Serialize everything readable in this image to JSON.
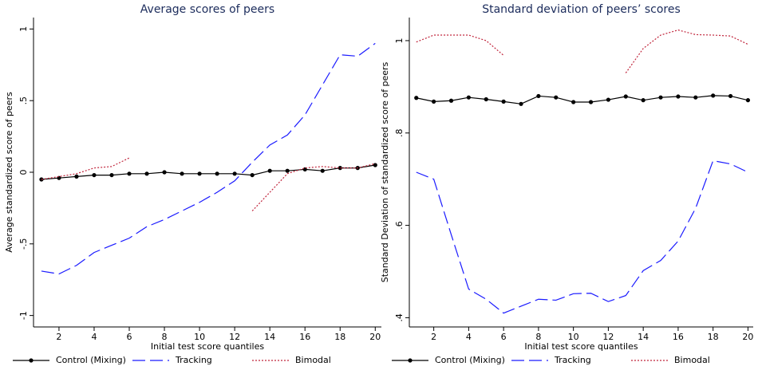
{
  "chart_data": [
    {
      "type": "line",
      "title": "Average scores of peers",
      "xlabel": "Initial test score quantiles",
      "ylabel": "Average standardized score of peers",
      "x": [
        1,
        2,
        3,
        4,
        5,
        6,
        7,
        8,
        9,
        10,
        11,
        12,
        13,
        14,
        15,
        16,
        17,
        18,
        19,
        20
      ],
      "xlim": [
        0.55,
        20.35
      ],
      "xticks": [
        2,
        4,
        6,
        8,
        10,
        12,
        14,
        16,
        18,
        20
      ],
      "ylim": [
        -1.08,
        1.08
      ],
      "yticks": [
        -1,
        {
          "value": -0.5,
          "label": "-.5"
        },
        0,
        {
          "value": 0.5,
          "label": ".5"
        },
        1
      ],
      "legend": "bottom",
      "series": [
        {
          "name": "Control (Mixing)",
          "color": "#000000",
          "line_style": "solid",
          "marker": true,
          "values": [
            -0.05,
            -0.04,
            -0.03,
            -0.02,
            -0.02,
            -0.01,
            -0.01,
            0.0,
            -0.01,
            -0.01,
            -0.01,
            -0.01,
            -0.02,
            0.01,
            0.01,
            0.02,
            0.01,
            0.03,
            0.03,
            0.05
          ]
        },
        {
          "name": "Tracking",
          "color": "#1a1aff",
          "line_style": "dashed",
          "marker": false,
          "values": [
            -0.69,
            -0.71,
            -0.65,
            -0.56,
            -0.51,
            -0.46,
            -0.38,
            -0.33,
            -0.27,
            -0.21,
            -0.14,
            -0.06,
            0.07,
            0.19,
            0.26,
            0.4,
            0.61,
            0.82,
            0.81,
            0.9
          ]
        },
        {
          "name": "Bimodal",
          "color": "#c0243b",
          "line_style": "dotted",
          "marker": false,
          "values": [
            -0.05,
            -0.03,
            -0.01,
            0.03,
            0.04,
            0.1,
            null,
            null,
            null,
            null,
            null,
            null,
            -0.27,
            -0.14,
            -0.01,
            0.03,
            0.04,
            0.03,
            0.03,
            0.06
          ]
        }
      ]
    },
    {
      "type": "line",
      "title": "Standard deviation of peers’ scores",
      "xlabel": "Initial test score quantiles",
      "ylabel": "Standard Deviation of standardized score of peers",
      "x": [
        1,
        2,
        3,
        4,
        5,
        6,
        7,
        8,
        9,
        10,
        11,
        12,
        13,
        14,
        15,
        16,
        17,
        18,
        19,
        20
      ],
      "xlim": [
        0.6,
        20.3
      ],
      "xticks": [
        2,
        4,
        6,
        8,
        10,
        12,
        14,
        16,
        18,
        20
      ],
      "ylim": [
        0.38,
        1.05
      ],
      "yticks": [
        {
          "value": 0.4,
          "label": ".4"
        },
        {
          "value": 0.6,
          "label": ".6"
        },
        {
          "value": 0.8,
          "label": ".8"
        },
        1
      ],
      "legend": "bottom",
      "series": [
        {
          "name": "Control (Mixing)",
          "color": "#000000",
          "line_style": "solid",
          "marker": true,
          "values": [
            0.876,
            0.868,
            0.87,
            0.877,
            0.873,
            0.868,
            0.863,
            0.88,
            0.877,
            0.867,
            0.867,
            0.872,
            0.879,
            0.871,
            0.877,
            0.879,
            0.877,
            0.881,
            0.88,
            0.871
          ]
        },
        {
          "name": "Tracking",
          "color": "#1a1aff",
          "line_style": "dashed",
          "marker": false,
          "values": [
            0.715,
            0.7,
            0.58,
            0.462,
            0.44,
            0.41,
            0.425,
            0.44,
            0.438,
            0.452,
            0.453,
            0.435,
            0.448,
            0.502,
            0.524,
            0.566,
            0.637,
            0.74,
            0.733,
            0.715
          ]
        },
        {
          "name": "Bimodal",
          "color": "#c0243b",
          "line_style": "dotted",
          "marker": false,
          "values": [
            0.997,
            1.012,
            1.012,
            1.012,
            1.0,
            0.968,
            null,
            null,
            null,
            null,
            null,
            null,
            0.93,
            0.983,
            1.012,
            1.023,
            1.013,
            1.012,
            1.01,
            0.992
          ]
        }
      ]
    }
  ]
}
